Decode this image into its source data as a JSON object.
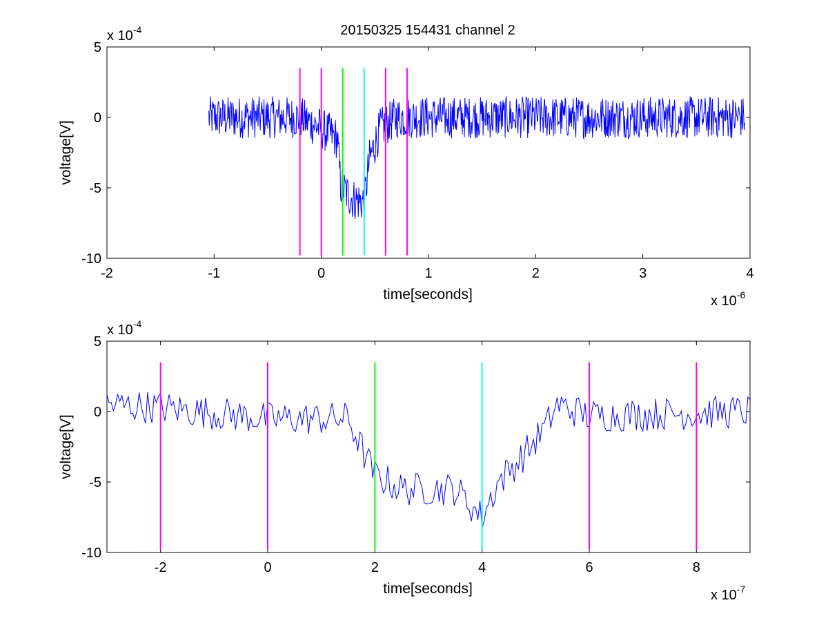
{
  "title": "20150325 154431 channel 2",
  "colors": {
    "signal": "#0000ff",
    "marker_magenta": "#ff00ff",
    "marker_green": "#00ff00",
    "marker_cyan": "#00ffff",
    "axes": "#000000",
    "background": "#ffffff"
  },
  "chart_data": [
    {
      "type": "line",
      "title": "20150325 154431 channel 2",
      "xlabel": "time[seconds]",
      "ylabel": "voltage[V]",
      "xlim": [
        -2e-06,
        4e-06
      ],
      "ylim": [
        -0.001,
        0.0005
      ],
      "x_multiplier_label": "x 10",
      "x_multiplier_exp": "-6",
      "y_multiplier_label": "x 10",
      "y_multiplier_exp": "-4",
      "x_ticks": [
        -2e-06,
        -1e-06,
        0,
        1e-06,
        2e-06,
        3e-06,
        4e-06
      ],
      "x_tick_labels": [
        "-2",
        "-1",
        "0",
        "1",
        "2",
        "3",
        "4"
      ],
      "y_ticks": [
        0.0005,
        0,
        -0.0005,
        -0.001
      ],
      "y_tick_labels": [
        "5",
        "0",
        "-5",
        "-10"
      ],
      "grid": false,
      "series": [
        {
          "values_description": "noisy voltage trace sampled from -1.05e-6 s to 3.95e-6 s",
          "x_start": -1.05e-06,
          "x_end": 3.95e-06,
          "key_points": [
            [
              -1.05e-06,
              0.0
            ],
            [
              -2e-07,
              0.0
            ],
            [
              0.0,
              -8e-05
            ],
            [
              1.5e-07,
              -0.00015
            ],
            [
              1.8e-07,
              -0.00048
            ],
            [
              2.5e-07,
              -0.00055
            ],
            [
              3e-07,
              -0.00058
            ],
            [
              4e-07,
              -0.0006
            ],
            [
              4.5e-07,
              -0.0003
            ],
            [
              5.5e-07,
              -8e-05
            ],
            [
              7e-07,
              0.0
            ],
            [
              1.5e-06,
              0.0
            ],
            [
              3.95e-06,
              0.0
            ]
          ],
          "noise_amplitude": 0.00015
        }
      ],
      "vertical_markers": [
        {
          "x": -2e-07,
          "color": "magenta"
        },
        {
          "x": 0.0,
          "color": "magenta"
        },
        {
          "x": 2e-07,
          "color": "green"
        },
        {
          "x": 4e-07,
          "color": "cyan"
        },
        {
          "x": 6e-07,
          "color": "magenta"
        },
        {
          "x": 8e-07,
          "color": "magenta"
        }
      ],
      "marker_ylim": [
        -0.00098,
        0.00035
      ]
    },
    {
      "type": "line",
      "xlabel": "time[seconds]",
      "ylabel": "voltage[V]",
      "xlim": [
        -3e-07,
        9e-07
      ],
      "ylim": [
        -0.001,
        0.0005
      ],
      "x_multiplier_label": "x 10",
      "x_multiplier_exp": "-7",
      "y_multiplier_label": "x 10",
      "y_multiplier_exp": "-4",
      "x_ticks": [
        -2e-07,
        0,
        2e-07,
        4e-07,
        6e-07,
        8e-07
      ],
      "x_tick_labels": [
        "-2",
        "0",
        "2",
        "4",
        "6",
        "8"
      ],
      "y_ticks": [
        0.0005,
        0,
        -0.0005,
        -0.001
      ],
      "y_tick_labels": [
        "5",
        "0",
        "-5",
        "-10"
      ],
      "grid": false,
      "series": [
        {
          "values_description": "zoomed noisy voltage trace from -3e-7 s to 9e-7 s",
          "x_start": -3e-07,
          "x_end": 9e-07,
          "key_points": [
            [
              -3e-07,
              5e-05
            ],
            [
              -2e-07,
              3e-05
            ],
            [
              0.0,
              -5e-05
            ],
            [
              1.5e-07,
              -5e-05
            ],
            [
              1.8e-07,
              -0.0003
            ],
            [
              2e-07,
              -0.00045
            ],
            [
              2.5e-07,
              -0.00055
            ],
            [
              3.5e-07,
              -0.00055
            ],
            [
              4e-07,
              -0.00075
            ],
            [
              4.3e-07,
              -0.0005
            ],
            [
              4.8e-07,
              -0.0003
            ],
            [
              5.2e-07,
              -0.0001
            ],
            [
              5.4e-07,
              5e-05
            ],
            [
              6e-07,
              -3e-05
            ],
            [
              9e-07,
              0.0
            ]
          ],
          "noise_amplitude": 0.00012
        }
      ],
      "vertical_markers": [
        {
          "x": -2e-07,
          "color": "magenta"
        },
        {
          "x": 0.0,
          "color": "magenta"
        },
        {
          "x": 2e-07,
          "color": "green"
        },
        {
          "x": 4e-07,
          "color": "cyan"
        },
        {
          "x": 6e-07,
          "color": "magenta"
        },
        {
          "x": 8e-07,
          "color": "magenta"
        }
      ],
      "marker_ylim": [
        -0.00098,
        0.00035
      ]
    }
  ]
}
